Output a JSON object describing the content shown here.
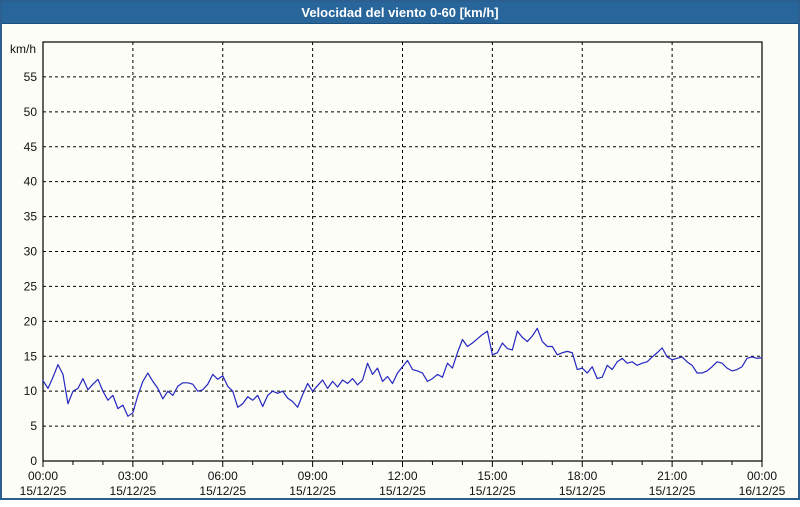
{
  "window": {
    "title": "Velocidad del viento 0-60 [km/h]"
  },
  "colors": {
    "frame_border": "#2a5f8f",
    "titlebar_bg": "#27659a",
    "titlebar_text": "#ffffff",
    "content_bg": "#fbfdf6",
    "axis": "#000000",
    "grid": "#000000",
    "tick_label": "#111111",
    "series_line": "#2626c0"
  },
  "chart_data": {
    "type": "line",
    "title": "Velocidad del viento 0-60 [km/h]",
    "ylabel": "km/h",
    "xlabel": "",
    "ylim": [
      0,
      60
    ],
    "xlim_hours": [
      0,
      24
    ],
    "grid": "dashed",
    "legend": "none",
    "y_ticks": [
      0,
      5,
      10,
      15,
      20,
      25,
      30,
      35,
      40,
      45,
      50,
      55
    ],
    "x_minor_tick_every_hours": 1,
    "x_ticks": [
      {
        "hour": 0,
        "time": "00:00",
        "date": "15/12/25"
      },
      {
        "hour": 3,
        "time": "03:00",
        "date": "15/12/25"
      },
      {
        "hour": 6,
        "time": "06:00",
        "date": "15/12/25"
      },
      {
        "hour": 9,
        "time": "09:00",
        "date": "15/12/25"
      },
      {
        "hour": 12,
        "time": "12:00",
        "date": "15/12/25"
      },
      {
        "hour": 15,
        "time": "15:00",
        "date": "15/12/25"
      },
      {
        "hour": 18,
        "time": "18:00",
        "date": "15/12/25"
      },
      {
        "hour": 21,
        "time": "21:00",
        "date": "15/12/25"
      },
      {
        "hour": 24,
        "time": "00:00",
        "date": "16/12/25"
      }
    ],
    "series": [
      {
        "name": "Velocidad del viento",
        "units": "km/h",
        "color": "#2626c0",
        "start_hour": 0,
        "interval_minutes": 10,
        "values": [
          11.5,
          10.4,
          12.0,
          13.8,
          12.4,
          8.2,
          10.0,
          10.4,
          11.8,
          10.2,
          11.0,
          11.7,
          10.0,
          8.7,
          9.4,
          7.5,
          8.0,
          6.4,
          6.9,
          9.4,
          11.4,
          12.6,
          11.4,
          10.4,
          8.9,
          10.0,
          9.4,
          10.7,
          11.2,
          11.2,
          11.0,
          10.0,
          10.2,
          11.0,
          12.4,
          11.7,
          12.2,
          10.7,
          10.0,
          7.7,
          8.2,
          9.2,
          8.7,
          9.4,
          7.8,
          9.4,
          10.0,
          9.7,
          10.0,
          9.0,
          8.5,
          7.7,
          9.5,
          11.1,
          10.0,
          10.8,
          11.6,
          10.4,
          11.4,
          10.6,
          11.6,
          11.1,
          11.8,
          10.9,
          11.6,
          14.0,
          12.4,
          13.3,
          11.4,
          12.1,
          11.1,
          12.6,
          13.5,
          14.4,
          13.1,
          12.9,
          12.6,
          11.4,
          11.8,
          12.4,
          12.0,
          14.0,
          13.3,
          15.5,
          17.4,
          16.4,
          16.9,
          17.5,
          18.1,
          18.6,
          15.2,
          15.5,
          16.9,
          16.1,
          15.9,
          18.6,
          17.7,
          17.1,
          17.9,
          19.0,
          17.1,
          16.4,
          16.4,
          15.2,
          15.5,
          15.7,
          15.5,
          13.1,
          13.3,
          12.6,
          13.5,
          11.8,
          12.0,
          13.7,
          13.1,
          14.2,
          14.7,
          14.0,
          14.2,
          13.7,
          14.0,
          14.2,
          14.9,
          15.5,
          16.2,
          14.9,
          14.5,
          14.7,
          14.9,
          14.2,
          13.7,
          12.6,
          12.6,
          12.9,
          13.5,
          14.2,
          14.0,
          13.3,
          12.9,
          13.1,
          13.5,
          14.7,
          14.9,
          14.7,
          14.8
        ]
      }
    ]
  }
}
